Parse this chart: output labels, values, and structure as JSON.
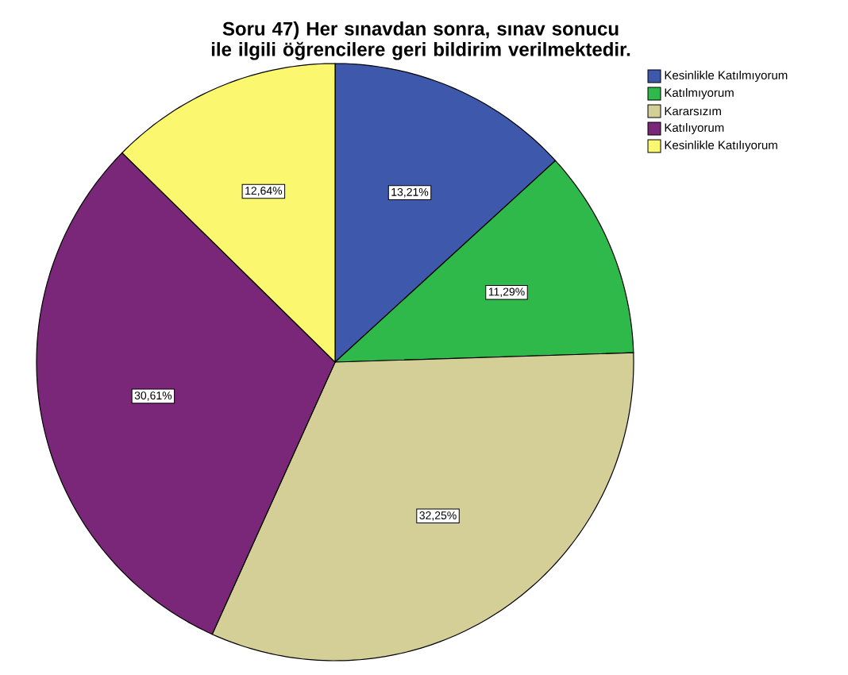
{
  "chart_data": {
    "type": "pie",
    "title": "Soru 47) Her sınavdan sonra, sınav sonucu ile ilgili öğrencilere geri bildirim verilmektedir.",
    "categories": [
      "Kesinlikle Katılmıyorum",
      "Katılmıyorum",
      "Kararsızım",
      "Katılıyorum",
      "Kesinlikle Katılıyorum"
    ],
    "values": [
      13.21,
      11.29,
      32.25,
      30.61,
      12.64
    ],
    "value_labels": [
      "13,21%",
      "11,29%",
      "32,25%",
      "30,61%",
      "12,64%"
    ],
    "colors": [
      "#3e58ac",
      "#2fb94a",
      "#d4cf96",
      "#7b2779",
      "#fbf76e"
    ],
    "legend": "top right"
  }
}
